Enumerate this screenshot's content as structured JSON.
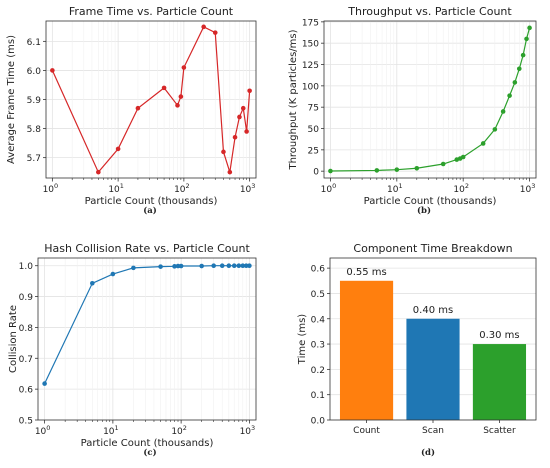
{
  "chart_data": [
    {
      "type": "line",
      "title": "Frame Time vs. Particle Count",
      "xlabel": "Particle Count (thousands)",
      "ylabel": "Average Frame Time (ms)",
      "caption": "(a)",
      "xscale": "log",
      "xlim": [
        0.8,
        1250
      ],
      "ylim": [
        5.63,
        6.17
      ],
      "xticks": [
        {
          "value": 1,
          "label": "10",
          "exp": "0"
        },
        {
          "value": 10,
          "label": "10",
          "exp": "1"
        },
        {
          "value": 100,
          "label": "10",
          "exp": "2"
        },
        {
          "value": 1000,
          "label": "10",
          "exp": "3"
        }
      ],
      "yticks": [
        {
          "value": 5.7,
          "label": "5.7"
        },
        {
          "value": 5.8,
          "label": "5.8"
        },
        {
          "value": 5.9,
          "label": "5.9"
        },
        {
          "value": 6.0,
          "label": "6.0"
        },
        {
          "value": 6.1,
          "label": "6.1"
        }
      ],
      "grid": true,
      "color": "#d62728",
      "series": [
        {
          "x": [
            1,
            5,
            10,
            20,
            50,
            80,
            90,
            100,
            200,
            300,
            400,
            500,
            600,
            700,
            800,
            900,
            1000
          ],
          "y": [
            6.0,
            5.65,
            5.73,
            5.87,
            5.94,
            5.88,
            5.91,
            6.01,
            6.15,
            6.13,
            5.72,
            5.65,
            5.77,
            5.84,
            5.87,
            5.79,
            5.93
          ]
        }
      ]
    },
    {
      "type": "line",
      "title": "Throughput vs. Particle Count",
      "xlabel": "Particle Count (thousands)",
      "ylabel": "Throughput (K particles/ms)",
      "caption": "(b)",
      "xscale": "log",
      "xlim": [
        0.8,
        1250
      ],
      "ylim": [
        -8,
        176
      ],
      "xticks": [
        {
          "value": 1,
          "label": "10",
          "exp": "0"
        },
        {
          "value": 10,
          "label": "10",
          "exp": "1"
        },
        {
          "value": 100,
          "label": "10",
          "exp": "2"
        },
        {
          "value": 1000,
          "label": "10",
          "exp": "3"
        }
      ],
      "yticks": [
        {
          "value": 0,
          "label": "0"
        },
        {
          "value": 25,
          "label": "25"
        },
        {
          "value": 50,
          "label": "50"
        },
        {
          "value": 75,
          "label": "75"
        },
        {
          "value": 100,
          "label": "100"
        },
        {
          "value": 125,
          "label": "125"
        },
        {
          "value": 150,
          "label": "150"
        },
        {
          "value": 175,
          "label": "175"
        }
      ],
      "grid": true,
      "color": "#2ca02c",
      "series": [
        {
          "x": [
            1,
            5,
            10,
            20,
            50,
            80,
            90,
            100,
            200,
            300,
            400,
            500,
            600,
            700,
            800,
            900,
            1000
          ],
          "y": [
            0.17,
            0.88,
            1.75,
            3.4,
            8.4,
            13.6,
            14.8,
            16.6,
            32.5,
            49,
            70,
            88.5,
            104,
            120,
            136,
            155,
            168
          ]
        }
      ]
    },
    {
      "type": "line",
      "title": "Hash Collision Rate vs. Particle Count",
      "xlabel": "Particle Count (thousands)",
      "ylabel": "Collision Rate",
      "caption": "(c)",
      "xscale": "log",
      "xlim": [
        0.8,
        1250
      ],
      "ylim": [
        0.5,
        1.025
      ],
      "xticks": [
        {
          "value": 1,
          "label": "10",
          "exp": "0"
        },
        {
          "value": 10,
          "label": "10",
          "exp": "1"
        },
        {
          "value": 100,
          "label": "10",
          "exp": "2"
        },
        {
          "value": 1000,
          "label": "10",
          "exp": "3"
        }
      ],
      "yticks": [
        {
          "value": 0.5,
          "label": "0.5"
        },
        {
          "value": 0.6,
          "label": "0.6"
        },
        {
          "value": 0.7,
          "label": "0.7"
        },
        {
          "value": 0.8,
          "label": "0.8"
        },
        {
          "value": 0.9,
          "label": "0.9"
        },
        {
          "value": 1.0,
          "label": "1.0"
        }
      ],
      "grid": true,
      "color": "#1f77b4",
      "series": [
        {
          "x": [
            1,
            5,
            10,
            20,
            50,
            80,
            90,
            100,
            200,
            300,
            400,
            500,
            600,
            700,
            800,
            900,
            1000
          ],
          "y": [
            0.618,
            0.943,
            0.973,
            0.993,
            0.997,
            0.998,
            0.999,
            0.999,
            0.999,
            1.0,
            1.0,
            1.0,
            1.0,
            1.0,
            1.0,
            1.0,
            1.0
          ]
        }
      ]
    },
    {
      "type": "bar",
      "title": "Component Time Breakdown",
      "xlabel": "",
      "ylabel": "Time (ms)",
      "caption": "(d)",
      "ylim": [
        0,
        0.64
      ],
      "yticks": [
        {
          "value": 0.0,
          "label": "0.0"
        },
        {
          "value": 0.1,
          "label": "0.1"
        },
        {
          "value": 0.2,
          "label": "0.2"
        },
        {
          "value": 0.3,
          "label": "0.3"
        },
        {
          "value": 0.4,
          "label": "0.4"
        },
        {
          "value": 0.5,
          "label": "0.5"
        },
        {
          "value": 0.6,
          "label": "0.6"
        }
      ],
      "grid": true,
      "categories": [
        "Count",
        "Scan",
        "Scatter"
      ],
      "values": [
        0.55,
        0.4,
        0.3
      ],
      "labels": [
        "0.55 ms",
        "0.40 ms",
        "0.30 ms"
      ],
      "colors": [
        "#ff7f0e",
        "#1f77b4",
        "#2ca02c"
      ]
    }
  ]
}
